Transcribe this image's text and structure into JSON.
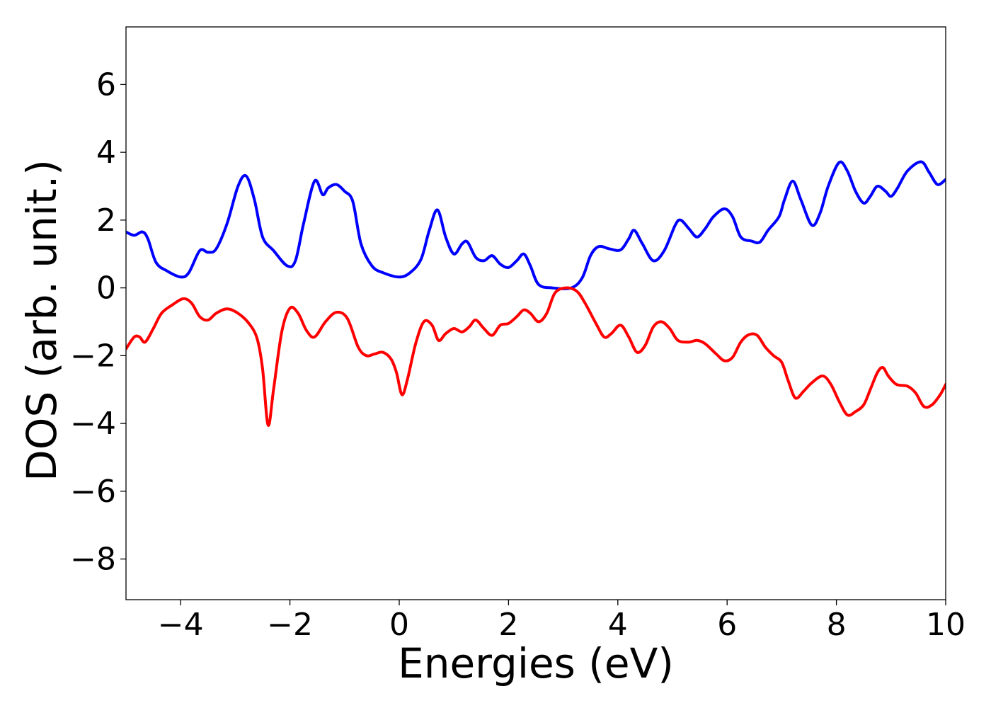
{
  "chart_data": {
    "type": "line",
    "title": "",
    "xlabel": "Energies (eV)",
    "ylabel": "DOS (arb. unit.)",
    "xlim": [
      -5,
      10
    ],
    "ylim": [
      -9.2,
      7.7
    ],
    "xticks": [
      -4,
      -2,
      0,
      2,
      4,
      6,
      8,
      10
    ],
    "yticks": [
      -8,
      -6,
      -4,
      -2,
      0,
      2,
      4,
      6
    ],
    "xtick_labels": [
      "−4",
      "−2",
      "0",
      "2",
      "4",
      "6",
      "8",
      "10"
    ],
    "ytick_labels": [
      "−8",
      "−6",
      "−4",
      "−2",
      "0",
      "2",
      "4",
      "6"
    ],
    "grid": false,
    "legend": "none",
    "series": [
      {
        "color": "#0000ff",
        "points": [
          [
            -5.0,
            1.65
          ],
          [
            -4.85,
            1.55
          ],
          [
            -4.7,
            1.65
          ],
          [
            -4.6,
            1.45
          ],
          [
            -4.45,
            0.75
          ],
          [
            -4.25,
            0.5
          ],
          [
            -4.0,
            0.32
          ],
          [
            -3.85,
            0.45
          ],
          [
            -3.65,
            1.1
          ],
          [
            -3.5,
            1.05
          ],
          [
            -3.35,
            1.15
          ],
          [
            -3.15,
            1.9
          ],
          [
            -2.95,
            3.0
          ],
          [
            -2.8,
            3.3
          ],
          [
            -2.65,
            2.6
          ],
          [
            -2.5,
            1.5
          ],
          [
            -2.3,
            1.1
          ],
          [
            -2.05,
            0.65
          ],
          [
            -1.9,
            0.8
          ],
          [
            -1.75,
            1.9
          ],
          [
            -1.55,
            3.15
          ],
          [
            -1.4,
            2.75
          ],
          [
            -1.3,
            2.95
          ],
          [
            -1.15,
            3.05
          ],
          [
            -1.0,
            2.85
          ],
          [
            -0.85,
            2.55
          ],
          [
            -0.7,
            1.3
          ],
          [
            -0.5,
            0.65
          ],
          [
            -0.3,
            0.45
          ],
          [
            0.0,
            0.32
          ],
          [
            0.2,
            0.45
          ],
          [
            0.4,
            0.85
          ],
          [
            0.55,
            1.7
          ],
          [
            0.7,
            2.3
          ],
          [
            0.85,
            1.5
          ],
          [
            1.0,
            1.0
          ],
          [
            1.15,
            1.3
          ],
          [
            1.25,
            1.35
          ],
          [
            1.4,
            0.9
          ],
          [
            1.55,
            0.8
          ],
          [
            1.7,
            0.95
          ],
          [
            1.85,
            0.7
          ],
          [
            2.0,
            0.6
          ],
          [
            2.15,
            0.8
          ],
          [
            2.28,
            1.0
          ],
          [
            2.4,
            0.65
          ],
          [
            2.55,
            0.1
          ],
          [
            2.8,
            0.0
          ],
          [
            3.15,
            0.0
          ],
          [
            3.35,
            0.3
          ],
          [
            3.5,
            0.95
          ],
          [
            3.65,
            1.22
          ],
          [
            3.85,
            1.15
          ],
          [
            4.05,
            1.12
          ],
          [
            4.2,
            1.45
          ],
          [
            4.3,
            1.7
          ],
          [
            4.45,
            1.3
          ],
          [
            4.65,
            0.8
          ],
          [
            4.85,
            1.1
          ],
          [
            5.05,
            1.85
          ],
          [
            5.15,
            2.0
          ],
          [
            5.3,
            1.75
          ],
          [
            5.45,
            1.5
          ],
          [
            5.6,
            1.75
          ],
          [
            5.75,
            2.1
          ],
          [
            5.95,
            2.33
          ],
          [
            6.1,
            2.1
          ],
          [
            6.25,
            1.5
          ],
          [
            6.45,
            1.38
          ],
          [
            6.6,
            1.35
          ],
          [
            6.75,
            1.7
          ],
          [
            6.95,
            2.1
          ],
          [
            7.05,
            2.6
          ],
          [
            7.2,
            3.15
          ],
          [
            7.35,
            2.6
          ],
          [
            7.55,
            1.85
          ],
          [
            7.7,
            2.2
          ],
          [
            7.85,
            3.0
          ],
          [
            8.05,
            3.7
          ],
          [
            8.2,
            3.45
          ],
          [
            8.35,
            2.85
          ],
          [
            8.5,
            2.5
          ],
          [
            8.62,
            2.7
          ],
          [
            8.75,
            3.0
          ],
          [
            8.9,
            2.85
          ],
          [
            9.0,
            2.7
          ],
          [
            9.12,
            2.95
          ],
          [
            9.3,
            3.45
          ],
          [
            9.55,
            3.72
          ],
          [
            9.7,
            3.4
          ],
          [
            9.85,
            3.05
          ],
          [
            10.0,
            3.2
          ]
        ]
      },
      {
        "color": "#ff0000",
        "points": [
          [
            -5.0,
            -1.8
          ],
          [
            -4.85,
            -1.45
          ],
          [
            -4.75,
            -1.45
          ],
          [
            -4.65,
            -1.6
          ],
          [
            -4.5,
            -1.2
          ],
          [
            -4.35,
            -0.75
          ],
          [
            -4.15,
            -0.5
          ],
          [
            -3.95,
            -0.32
          ],
          [
            -3.8,
            -0.45
          ],
          [
            -3.65,
            -0.85
          ],
          [
            -3.5,
            -0.95
          ],
          [
            -3.35,
            -0.75
          ],
          [
            -3.15,
            -0.62
          ],
          [
            -2.95,
            -0.75
          ],
          [
            -2.75,
            -1.05
          ],
          [
            -2.6,
            -1.5
          ],
          [
            -2.5,
            -2.4
          ],
          [
            -2.4,
            -4.05
          ],
          [
            -2.3,
            -3.0
          ],
          [
            -2.15,
            -1.3
          ],
          [
            -2.0,
            -0.6
          ],
          [
            -1.85,
            -0.75
          ],
          [
            -1.7,
            -1.25
          ],
          [
            -1.55,
            -1.45
          ],
          [
            -1.35,
            -1.0
          ],
          [
            -1.15,
            -0.72
          ],
          [
            -0.95,
            -0.9
          ],
          [
            -0.75,
            -1.75
          ],
          [
            -0.6,
            -2.0
          ],
          [
            -0.45,
            -1.95
          ],
          [
            -0.3,
            -1.9
          ],
          [
            -0.15,
            -2.1
          ],
          [
            -0.05,
            -2.5
          ],
          [
            0.05,
            -3.15
          ],
          [
            0.15,
            -2.7
          ],
          [
            0.3,
            -1.65
          ],
          [
            0.45,
            -1.0
          ],
          [
            0.6,
            -1.1
          ],
          [
            0.72,
            -1.55
          ],
          [
            0.85,
            -1.35
          ],
          [
            1.0,
            -1.2
          ],
          [
            1.15,
            -1.3
          ],
          [
            1.28,
            -1.15
          ],
          [
            1.4,
            -0.95
          ],
          [
            1.55,
            -1.2
          ],
          [
            1.7,
            -1.4
          ],
          [
            1.85,
            -1.1
          ],
          [
            2.0,
            -1.05
          ],
          [
            2.15,
            -0.85
          ],
          [
            2.28,
            -0.65
          ],
          [
            2.4,
            -0.75
          ],
          [
            2.55,
            -1.0
          ],
          [
            2.7,
            -0.75
          ],
          [
            2.85,
            -0.15
          ],
          [
            3.05,
            0.0
          ],
          [
            3.25,
            -0.1
          ],
          [
            3.4,
            -0.45
          ],
          [
            3.6,
            -1.05
          ],
          [
            3.75,
            -1.45
          ],
          [
            3.88,
            -1.35
          ],
          [
            4.05,
            -1.1
          ],
          [
            4.2,
            -1.45
          ],
          [
            4.35,
            -1.9
          ],
          [
            4.5,
            -1.7
          ],
          [
            4.65,
            -1.15
          ],
          [
            4.8,
            -1.0
          ],
          [
            4.95,
            -1.2
          ],
          [
            5.1,
            -1.55
          ],
          [
            5.3,
            -1.6
          ],
          [
            5.45,
            -1.55
          ],
          [
            5.6,
            -1.65
          ],
          [
            5.8,
            -1.95
          ],
          [
            5.95,
            -2.15
          ],
          [
            6.1,
            -2.05
          ],
          [
            6.25,
            -1.6
          ],
          [
            6.4,
            -1.38
          ],
          [
            6.55,
            -1.4
          ],
          [
            6.7,
            -1.75
          ],
          [
            6.85,
            -2.0
          ],
          [
            7.0,
            -2.2
          ],
          [
            7.12,
            -2.75
          ],
          [
            7.25,
            -3.25
          ],
          [
            7.4,
            -3.05
          ],
          [
            7.55,
            -2.8
          ],
          [
            7.75,
            -2.6
          ],
          [
            7.9,
            -2.85
          ],
          [
            8.05,
            -3.35
          ],
          [
            8.2,
            -3.75
          ],
          [
            8.35,
            -3.65
          ],
          [
            8.5,
            -3.45
          ],
          [
            8.62,
            -3.0
          ],
          [
            8.75,
            -2.5
          ],
          [
            8.85,
            -2.35
          ],
          [
            8.95,
            -2.6
          ],
          [
            9.1,
            -2.85
          ],
          [
            9.3,
            -2.9
          ],
          [
            9.45,
            -3.1
          ],
          [
            9.6,
            -3.5
          ],
          [
            9.75,
            -3.45
          ],
          [
            9.9,
            -3.15
          ],
          [
            10.0,
            -2.85
          ]
        ]
      }
    ]
  }
}
